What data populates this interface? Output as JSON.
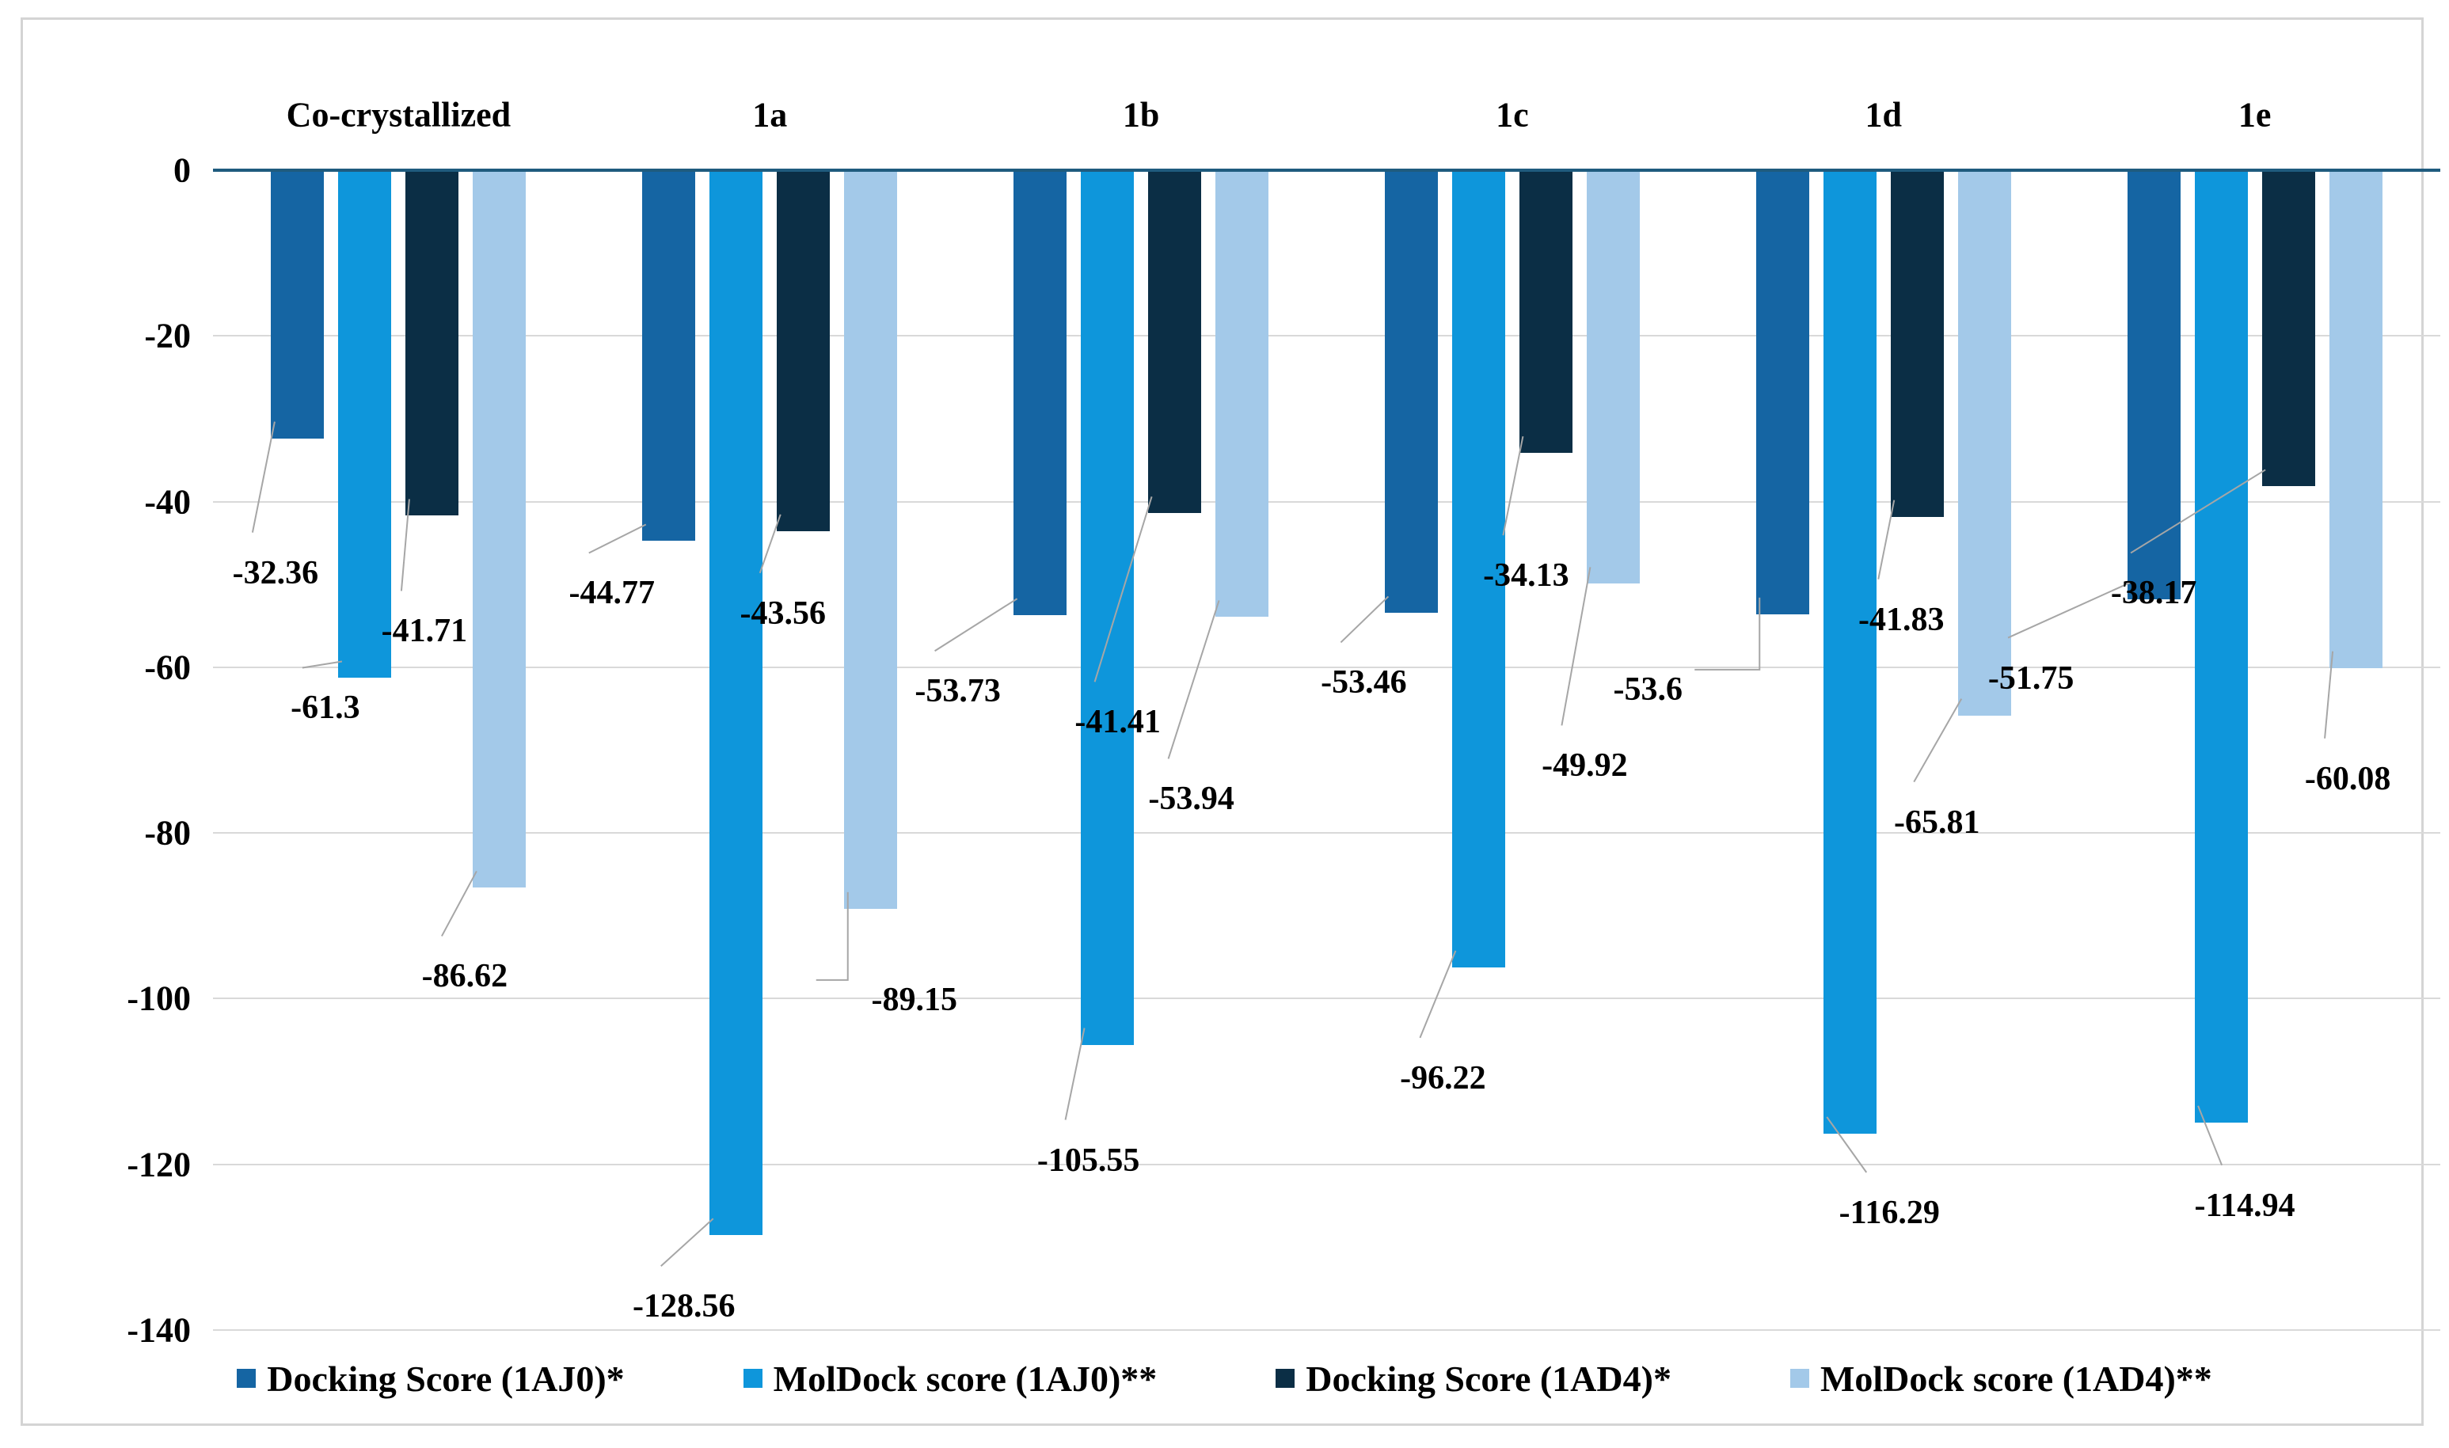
{
  "chart_data": {
    "type": "bar",
    "title": "",
    "orientation": "vertical-negative",
    "categories": [
      "Co-crystallized",
      "1a",
      "1b",
      "1c",
      "1d",
      "1e"
    ],
    "series": [
      {
        "name": "Docking Score (1AJ0)*",
        "color": "#1565a3",
        "values": [
          -32.36,
          -44.77,
          -53.73,
          -53.46,
          -53.6,
          -51.75
        ],
        "labels": [
          "-32.36",
          "-44.77",
          "-53.73",
          "-53.46",
          "-53.6",
          "-51.75"
        ]
      },
      {
        "name": "MolDock score (1AJ0)**",
        "color": "#0e96db",
        "values": [
          -61.3,
          -128.56,
          -105.55,
          -96.22,
          -116.29,
          -114.94
        ],
        "labels": [
          "-61.3",
          "-128.56",
          "-105.55",
          "-96.22",
          "-116.29",
          "-114.94"
        ]
      },
      {
        "name": "Docking Score (1AD4)*",
        "color": "#0b2e45",
        "values": [
          -41.71,
          -43.56,
          -41.41,
          -34.13,
          -41.83,
          -38.17
        ],
        "labels": [
          "-41.71",
          "-43.56",
          "-41.41",
          "-34.13",
          "-41.83",
          "-38.17"
        ]
      },
      {
        "name": "MolDock score (1AD4)**",
        "color": "#a3c9e9",
        "values": [
          -86.62,
          -89.15,
          -53.94,
          -49.92,
          -65.81,
          -60.08
        ],
        "labels": [
          "-86.62",
          "-89.15",
          "-53.94",
          "-49.92",
          "-65.81",
          "-60.08"
        ]
      }
    ],
    "y_ticks": [
      "0",
      "-20",
      "-40",
      "-60",
      "-80",
      "-100",
      "-120",
      "-140"
    ],
    "ylim": [
      0,
      -140
    ],
    "xlabel": "",
    "ylabel": "",
    "grid": true,
    "legend_position": "bottom"
  },
  "colors": {
    "axis_line": "#1f5b7e",
    "gridline": "#d9d9d9",
    "leader_line": "#a6a6a6",
    "frame_border": "#d4d4d4",
    "text": "#000000",
    "background": "#ffffff"
  }
}
